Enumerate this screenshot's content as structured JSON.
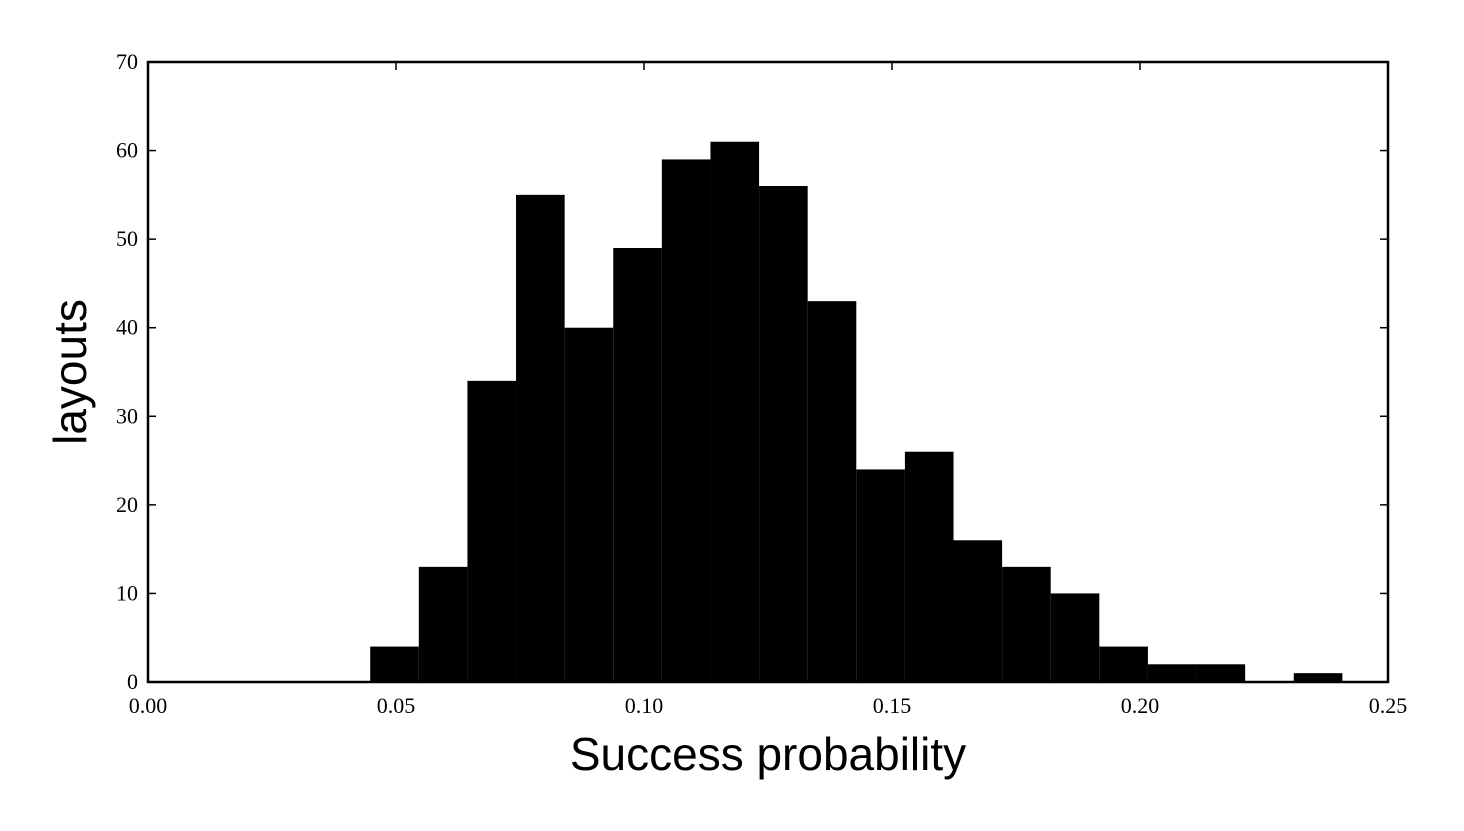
{
  "chart_data": {
    "type": "histogram",
    "x_label": "Success probability",
    "y_label": "layouts",
    "bins": [
      0.0448,
      0.0546,
      0.0644,
      0.0742,
      0.084,
      0.0938,
      0.1036,
      0.1134,
      0.1232,
      0.133,
      0.1428,
      0.1526,
      0.1624,
      0.1722,
      0.182,
      0.1918,
      0.2016,
      0.2114,
      0.2212,
      0.231,
      0.2408
    ],
    "values": [
      4,
      13,
      34,
      55,
      40,
      49,
      59,
      61,
      56,
      43,
      24,
      26,
      16,
      13,
      10,
      4,
      2,
      2,
      0,
      1
    ],
    "color": "#000000",
    "xlim": [
      0,
      0.25
    ],
    "ylim": [
      0,
      70
    ],
    "xticks": [
      {
        "value": 0,
        "label": "0.00"
      },
      0.05,
      {
        "value": 0.1,
        "label": "0.10"
      },
      0.15,
      {
        "value": 0.2,
        "label": "0.20"
      },
      0.25
    ],
    "yticks": [
      0,
      10,
      20,
      30,
      40,
      50,
      60,
      70
    ],
    "grid": false
  }
}
